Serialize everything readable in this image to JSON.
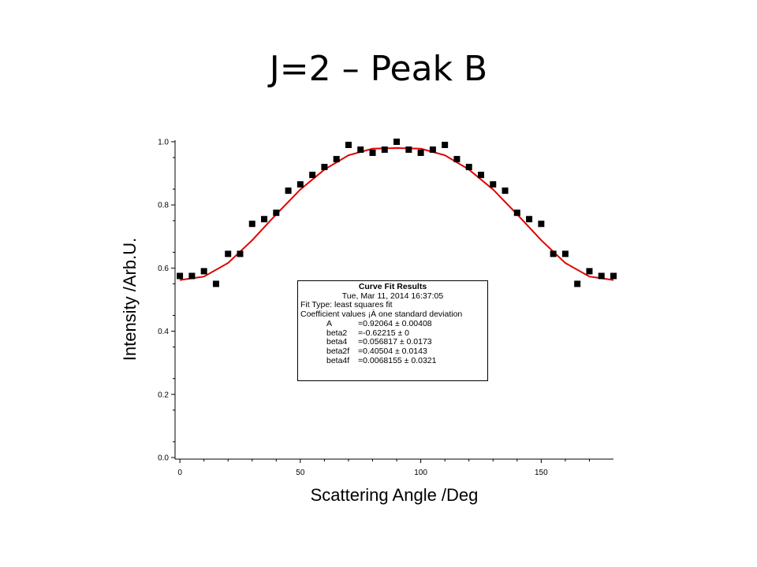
{
  "slide": {
    "title": "J=2 – Peak B"
  },
  "fit_box": {
    "heading": "Curve Fit Results",
    "timestamp": "Tue, Mar 11, 2014 16:37:05",
    "fit_type": "Fit Type: least squares fit",
    "coef_header": "Coefficient values ¡À one standard deviation",
    "params": [
      {
        "name": "A",
        "value": "=0.92064 ± 0.00408"
      },
      {
        "name": "beta2",
        "value": "=-0.62215 ± 0"
      },
      {
        "name": "beta4",
        "value": "=0.056817 ± 0.0173"
      },
      {
        "name": "beta2f",
        "value": "=0.40504 ± 0.0143"
      },
      {
        "name": "beta4f",
        "value": "=0.0068155 ± 0.0321"
      }
    ]
  },
  "chart_data": {
    "type": "scatter",
    "xlabel": "Scattering Angle /Deg",
    "ylabel": "Intensity /Arb.U.",
    "xlim": [
      -2,
      180
    ],
    "ylim": [
      -0.005,
      1.005
    ],
    "xticks": [
      0,
      50,
      100,
      150
    ],
    "yticks": [
      0.0,
      0.2,
      0.4,
      0.6,
      0.8,
      1.0
    ],
    "xtick_labels": [
      "0",
      "50",
      "100",
      "150"
    ],
    "ytick_labels": [
      "0.0",
      "0.2",
      "0.4",
      "0.6",
      "0.8",
      "1.0"
    ],
    "grid": false,
    "series": [
      {
        "kind": "points",
        "color": "#000000",
        "x": [
          0,
          5,
          10,
          15,
          20,
          25,
          30,
          35,
          40,
          45,
          50,
          55,
          60,
          65,
          70,
          75,
          80,
          85,
          90,
          95,
          100,
          105,
          110,
          115,
          120,
          125,
          130,
          135,
          140,
          145,
          150,
          155,
          160,
          165,
          170,
          175,
          180
        ],
        "y": [
          0.575,
          0.575,
          0.59,
          0.55,
          0.645,
          0.645,
          0.74,
          0.755,
          0.775,
          0.845,
          0.865,
          0.895,
          0.92,
          0.945,
          0.99,
          0.975,
          0.965,
          0.975,
          1.0,
          0.975,
          0.965,
          0.975,
          0.99,
          0.945,
          0.92,
          0.895,
          0.865,
          0.845,
          0.775,
          0.755,
          0.74,
          0.645,
          0.645,
          0.55,
          0.59,
          0.575,
          0.575
        ]
      },
      {
        "kind": "fit-line",
        "color": "#e00000",
        "x": [
          0,
          10,
          20,
          30,
          40,
          50,
          60,
          70,
          80,
          90,
          100,
          110,
          120,
          130,
          140,
          150,
          160,
          170,
          180
        ],
        "y": [
          0.562,
          0.573,
          0.616,
          0.688,
          0.77,
          0.849,
          0.912,
          0.957,
          0.978,
          0.98,
          0.978,
          0.957,
          0.912,
          0.849,
          0.77,
          0.688,
          0.616,
          0.573,
          0.562
        ]
      }
    ]
  }
}
